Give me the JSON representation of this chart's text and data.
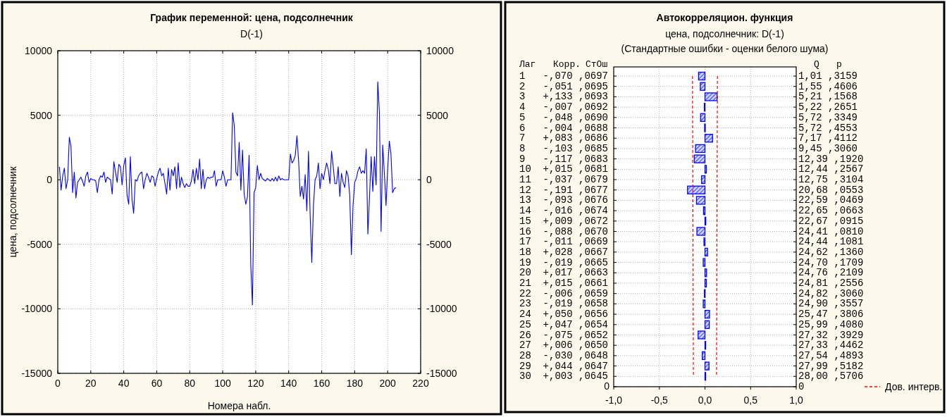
{
  "chart_data": [
    {
      "type": "line",
      "title": "График переменной: цена, подсолнечник",
      "subtitle": "D(-1)",
      "xlabel": "Номера набл.",
      "ylabel": "цена, подсолнечник",
      "series": [
        {
          "color": "#0000ff",
          "x": [
            1,
            2,
            3,
            4,
            5,
            6,
            7,
            8,
            9,
            10,
            11,
            12,
            13,
            14,
            15,
            16,
            17,
            18,
            19,
            20,
            21,
            22,
            23,
            24,
            25,
            26,
            27,
            28,
            29,
            30,
            31,
            32,
            33,
            34,
            35,
            36,
            37,
            38,
            39,
            40,
            41,
            42,
            43,
            44,
            45,
            46,
            47,
            48,
            49,
            50,
            51,
            52,
            53,
            54,
            55,
            56,
            57,
            58,
            59,
            60,
            61,
            62,
            63,
            64,
            65,
            66,
            67,
            68,
            69,
            70,
            71,
            72,
            73,
            74,
            75,
            76,
            77,
            78,
            79,
            80,
            81,
            82,
            83,
            84,
            85,
            86,
            87,
            88,
            89,
            90,
            91,
            92,
            93,
            94,
            95,
            96,
            97,
            98,
            99,
            100,
            101,
            102,
            103,
            104,
            105,
            106,
            107,
            108,
            109,
            110,
            111,
            112,
            113,
            114,
            115,
            116,
            117,
            118,
            119,
            120,
            121,
            122,
            123,
            124,
            125,
            126,
            127,
            128,
            129,
            130,
            131,
            132,
            133,
            134,
            135,
            136,
            137,
            138,
            139,
            140,
            141,
            142,
            143,
            144,
            145,
            146,
            147,
            148,
            149,
            150,
            151,
            152,
            153,
            154,
            155,
            156,
            157,
            158,
            159,
            160,
            161,
            162,
            163,
            164,
            165,
            166,
            167,
            168,
            169,
            170,
            171,
            172,
            173,
            174,
            175,
            176,
            177,
            178,
            179,
            180,
            181,
            182,
            183,
            184,
            185,
            186,
            187,
            188,
            189,
            190,
            191,
            192,
            193,
            194,
            195,
            196,
            197,
            198,
            199,
            200,
            201,
            202,
            203,
            204,
            205
          ],
          "values": [
            1000,
            -800,
            300,
            900,
            -700,
            0,
            3300,
            2600,
            -1000,
            600,
            -1400,
            -200,
            0,
            200,
            -100,
            -500,
            300,
            600,
            -200,
            100,
            0,
            0,
            -100,
            -1000,
            0,
            300,
            200,
            600,
            -200,
            200,
            100,
            0,
            -1100,
            1400,
            600,
            -200,
            1200,
            1000,
            -400,
            1100,
            1700,
            -1200,
            -1900,
            1800,
            -1500,
            -2600,
            0,
            -100,
            300,
            500,
            600,
            -700,
            0,
            500,
            200,
            -200,
            300,
            200,
            -500,
            100,
            600,
            900,
            300,
            500,
            -300,
            -1100,
            900,
            -800,
            800,
            300,
            1000,
            -700,
            1300,
            -600,
            200,
            -300,
            -600,
            -300,
            -500,
            -500,
            -100,
            800,
            -300,
            900,
            0,
            1600,
            -700,
            800,
            -700,
            0,
            200,
            100,
            200,
            200,
            700,
            -500,
            0,
            0,
            0,
            700,
            200,
            -500,
            0,
            0,
            0,
            5200,
            4200,
            600,
            300,
            2900,
            -800,
            2300,
            -1100,
            -1900,
            -1300,
            1900,
            -6600,
            -9700,
            -1000,
            -600,
            1100,
            0,
            500,
            100,
            0,
            -100,
            100,
            0,
            -100,
            100,
            -100,
            200,
            -100,
            300,
            0,
            100,
            0,
            0,
            0,
            0,
            2000,
            1300,
            1500,
            1900,
            3400,
            1500,
            -1300,
            -500,
            -1500,
            400,
            -2400,
            2200,
            -2700,
            -6400,
            -2000,
            0,
            300,
            1300,
            -700,
            500,
            0,
            700,
            1300,
            800,
            -300,
            2200,
            1000,
            -300,
            -300,
            1000,
            -1300,
            500,
            -200,
            -600,
            700,
            300,
            -1200,
            -5800,
            -2000,
            -200,
            100,
            700,
            1000,
            500,
            700,
            500,
            2400,
            -4200,
            -1300,
            1800,
            -900,
            1800,
            -400,
            7600,
            5200,
            -4000,
            2700,
            500,
            -2000,
            800,
            3000,
            2000,
            -1000,
            -700,
            -600
          ]
        }
      ],
      "xlim": [
        0,
        220
      ],
      "xticks": [
        0,
        20,
        40,
        60,
        80,
        100,
        120,
        140,
        160,
        180,
        200,
        220
      ],
      "ylim": [
        -15000,
        10000
      ],
      "yticks": [
        -15000,
        -10000,
        -5000,
        0,
        5000,
        10000
      ],
      "y2lim": [
        -15000,
        10000
      ],
      "y2ticks": [
        -15000,
        -10000,
        -5000,
        0,
        5000,
        10000
      ],
      "grid": true,
      "line_style": "solid"
    },
    {
      "type": "bar",
      "orientation": "horizontal",
      "title": "Автокорреляцион. функция",
      "subtitle": "цена, подсолнечник: D(-1)\n(Стандартные ошибки - оценки белого шума)",
      "categories": [
        null,
        null,
        null,
        null,
        null,
        null,
        null,
        null,
        null,
        null,
        null,
        null,
        null,
        null,
        null,
        null,
        null,
        null,
        null,
        null,
        null,
        null,
        null,
        null,
        null,
        null,
        null,
        null,
        null,
        null,
        "0"
      ],
      "series": [
        {
          "color": "#0000ff",
          "values": [
            -0.07,
            -0.051,
            0.133,
            -0.007,
            -0.048,
            -0.004,
            0.083,
            -0.103,
            -0.117,
            0.015,
            -0.037,
            -0.191,
            -0.093,
            -0.016,
            0.009,
            -0.088,
            -0.011,
            0.028,
            -0.019,
            0.017,
            0.015,
            -0.006,
            -0.019,
            0.05,
            0.047,
            -0.075,
            0.006,
            -0.03,
            0.044,
            0.003,
            null
          ]
        },
        {
          "type": "line",
          "name": "Дов. интерв.",
          "color": "#ff0000",
          "line_style": "dashed",
          "values": [
            0.137,
            0.136,
            0.136,
            0.136,
            0.135,
            0.135,
            0.134,
            0.134,
            0.134,
            0.133,
            0.133,
            0.133,
            0.132,
            0.132,
            0.132,
            0.131,
            0.131,
            0.131,
            0.13,
            0.13,
            0.13,
            0.129,
            0.129,
            0.129,
            0.128,
            0.128,
            0.127,
            0.127,
            0.127,
            0.126,
            null
          ]
        },
        {
          "type": "line",
          "color": "#ff0000",
          "line_style": "dashed",
          "values": [
            -0.137,
            -0.136,
            -0.136,
            -0.136,
            -0.135,
            -0.135,
            -0.134,
            -0.134,
            -0.134,
            -0.133,
            -0.133,
            -0.133,
            -0.132,
            -0.132,
            -0.132,
            -0.131,
            -0.131,
            -0.131,
            -0.13,
            -0.13,
            -0.13,
            -0.129,
            -0.129,
            -0.129,
            -0.128,
            -0.128,
            -0.127,
            -0.127,
            -0.127,
            -0.126,
            null
          ]
        }
      ],
      "xlim": [
        -1,
        1
      ],
      "xticks": [
        {
          "value": -1,
          "label": "-1,0"
        },
        {
          "value": -0.5,
          "label": "-0,5"
        },
        {
          "value": 0,
          "label": "0,0"
        },
        {
          "value": 0.5,
          "label": "0,5"
        },
        {
          "value": 1,
          "label": "1,0"
        }
      ],
      "grid": true,
      "legend": "bottom right",
      "annotations": [
        "Лаг",
        "Корр.",
        "СтОш",
        "Q",
        "p",
        "1   -,070 ,0697",
        "2   -,051 ,0695",
        "3   +,133 ,0693",
        "4   -,007 ,0692",
        "5   -,048 ,0690",
        "6   -,004 ,0688",
        "7   +,083 ,0686",
        "8   -,103 ,0685",
        "9   -,117 ,0683",
        "10  +,015 ,0681",
        "11  -,037 ,0679",
        "12  -,191 ,0677",
        "13  -,093 ,0676",
        "14  -,016 ,0674",
        "15  +,009 ,0672",
        "16  -,088 ,0670",
        "17  -,011 ,0669",
        "18  +,028 ,0667",
        "19  -,019 ,0665",
        "20  +,017 ,0663",
        "21  +,015 ,0661",
        "22  -,006 ,0659",
        "23  -,019 ,0658",
        "24  +,050 ,0656",
        "25  +,047 ,0654",
        "26  -,075 ,0652",
        "27  +,006 ,0650",
        "28  -,030 ,0648",
        "29  +,044 ,0647",
        "30  +,003 ,0645",
        "1,01 ,3159",
        "1,55 ,4606",
        "5,21 ,1568",
        "5,22 ,2651",
        "5,72 ,3349",
        "5,72 ,4553",
        "7,17 ,4112",
        "9,45 ,3060",
        "12,39 ,1920",
        "12,44 ,2567",
        "12,75 ,3104",
        "20,68 ,0553",
        "22,59 ,0469",
        "22,65 ,0663",
        "22,67 ,0915",
        "24,41 ,0810",
        "24,44 ,1081",
        "24,62 ,1360",
        "24,70 ,1709",
        "24,76 ,2109",
        "24,81 ,2556",
        "24,82 ,3060",
        "24,90 ,3557",
        "25,47 ,3806",
        "25,99 ,4080",
        "27,32 ,3929",
        "27,33 ,4462",
        "27,54 ,4893",
        "27,99 ,5182",
        "28,00 ,5706",
        "0"
      ]
    }
  ]
}
